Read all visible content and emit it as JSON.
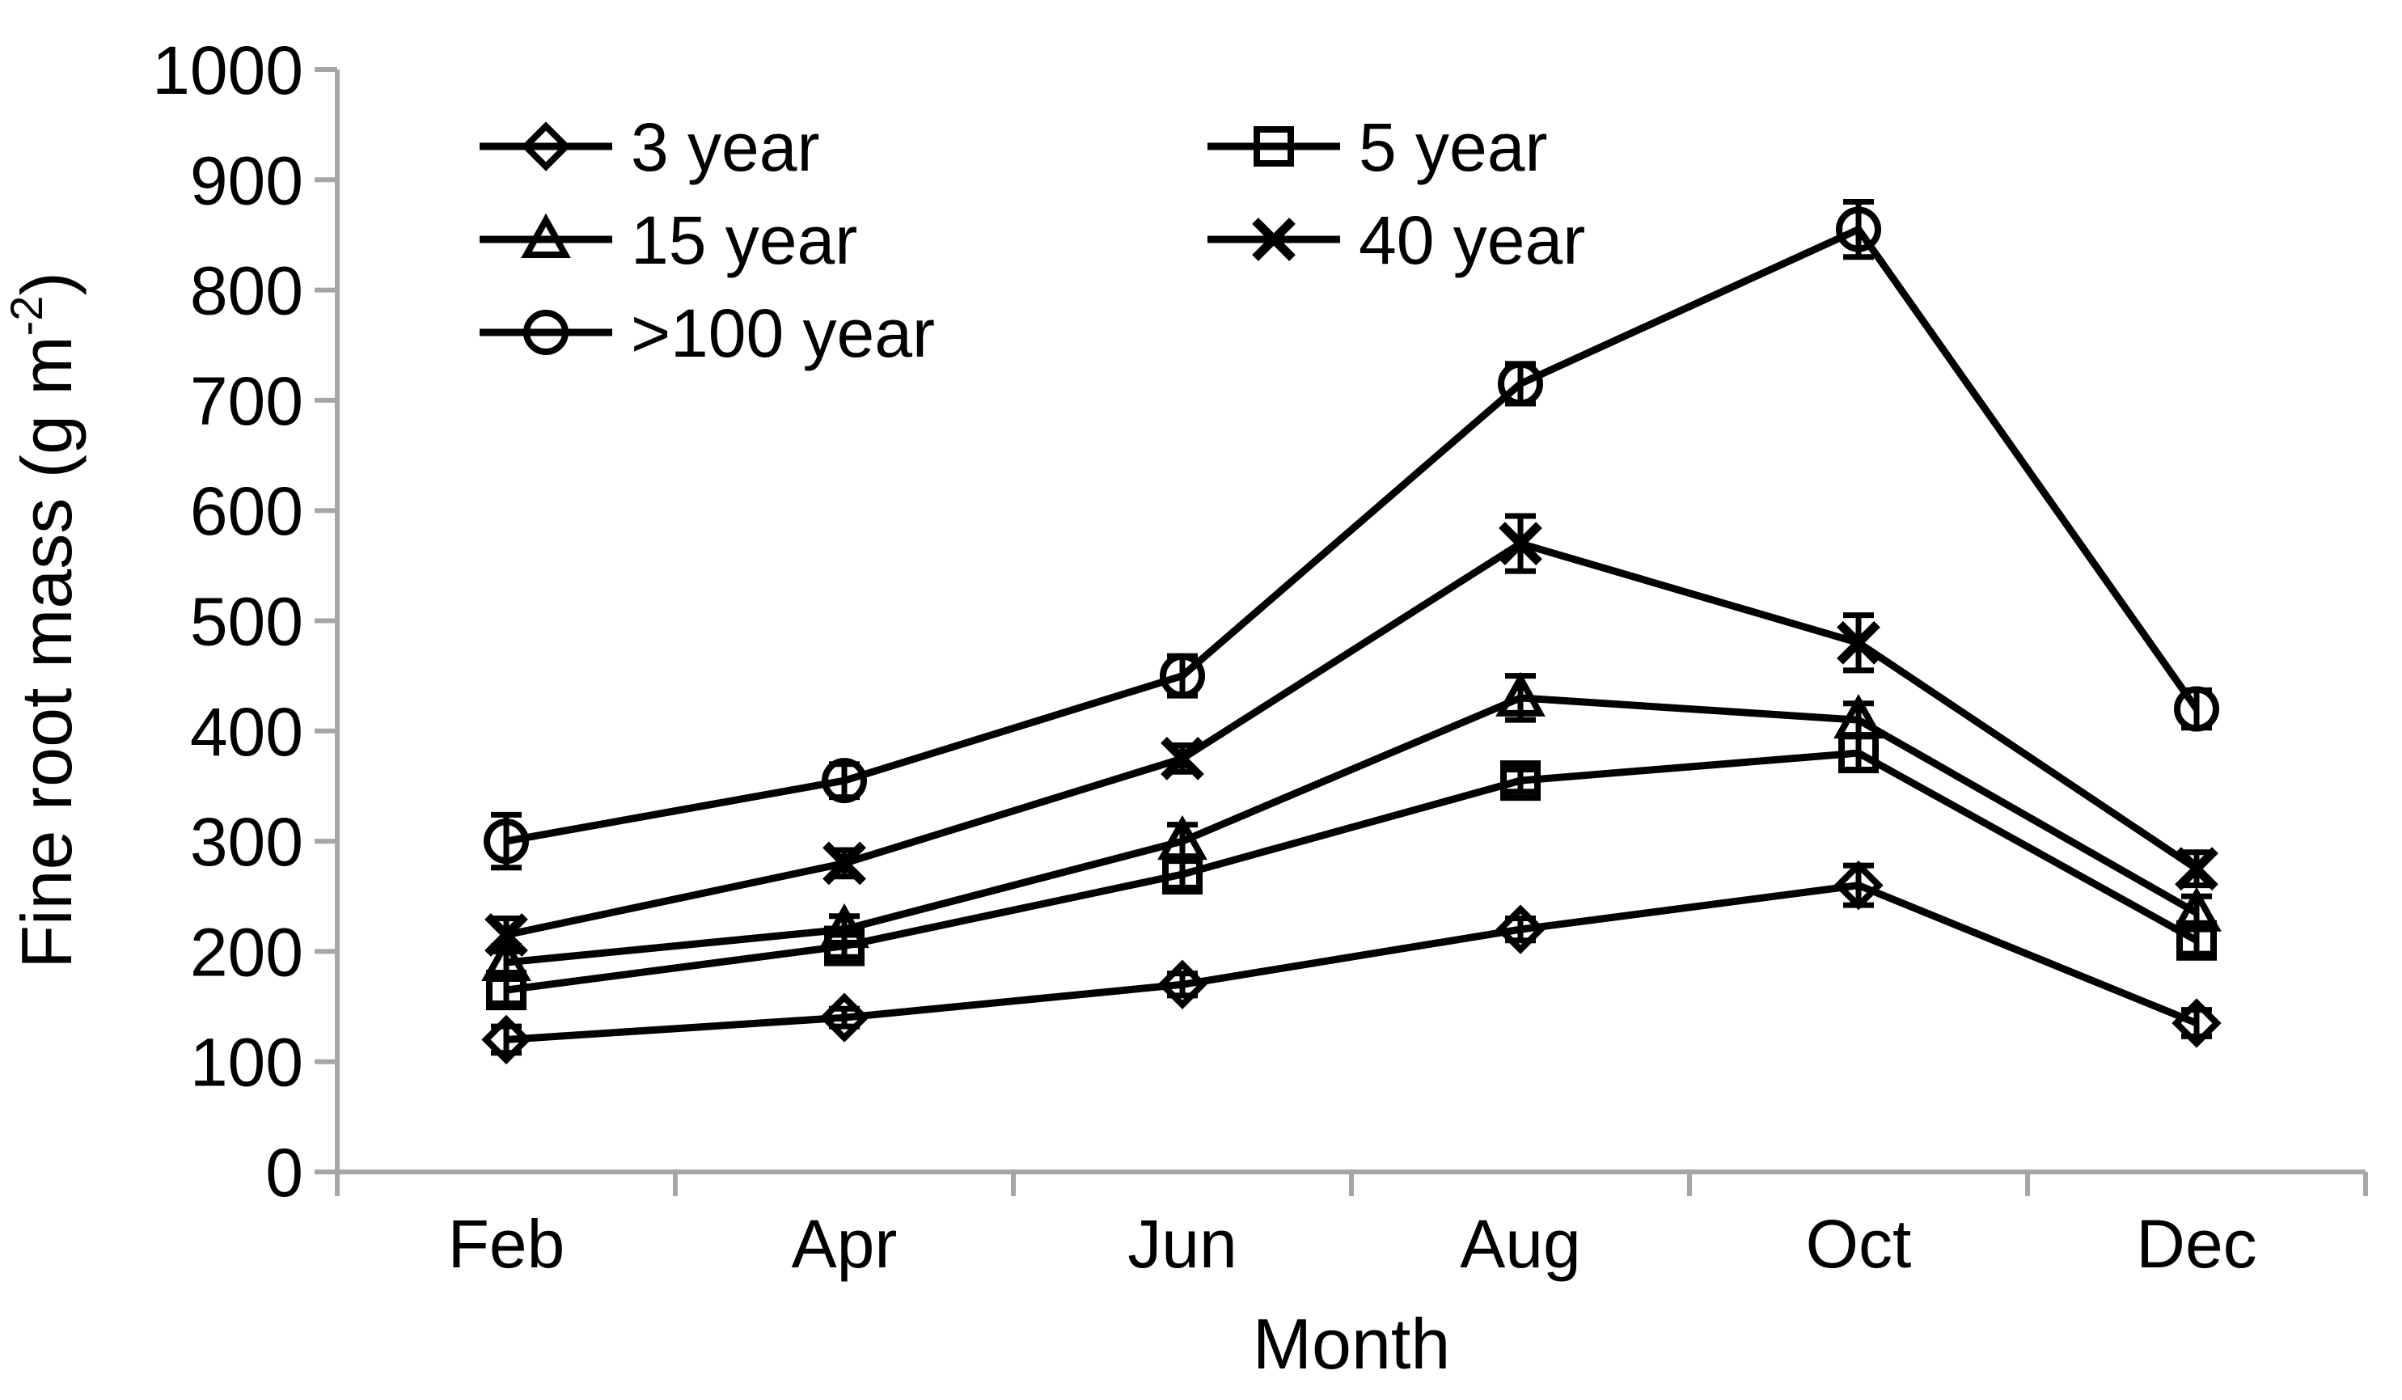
{
  "chart_data": {
    "type": "line",
    "title": "",
    "xlabel": "Month",
    "ylabel": "Fine root mass (g m⁻²)",
    "ylabel_parts": {
      "main": "Fine root mass (g m",
      "superscript": "-2",
      "suffix": ")"
    },
    "categories": [
      "Feb",
      "Apr",
      "Jun",
      "Aug",
      "Oct",
      "Dec"
    ],
    "ylim": [
      0,
      1000
    ],
    "y_ticks": [
      0,
      100,
      200,
      300,
      400,
      500,
      600,
      700,
      800,
      900,
      1000
    ],
    "grid": false,
    "legend_position": "top-left-inside",
    "legend_columns": 2,
    "axis_color": "#a6a6a6",
    "data_color": "#000000",
    "series": [
      {
        "name": "3 year",
        "marker": "diamond",
        "values": [
          120,
          140,
          170,
          220,
          260,
          135
        ],
        "errors": [
          12,
          8,
          10,
          10,
          18,
          12
        ]
      },
      {
        "name": "5 year",
        "marker": "square",
        "values": [
          165,
          205,
          270,
          355,
          380,
          210
        ],
        "errors": [
          12,
          10,
          12,
          10,
          15,
          12
        ]
      },
      {
        "name": "15 year",
        "marker": "triangle",
        "values": [
          190,
          220,
          300,
          430,
          410,
          235
        ],
        "errors": [
          15,
          12,
          15,
          20,
          15,
          15
        ]
      },
      {
        "name": "40 year",
        "marker": "x",
        "values": [
          215,
          280,
          375,
          570,
          480,
          275
        ],
        "errors": [
          15,
          12,
          12,
          25,
          25,
          15
        ]
      },
      {
        "name": ">100 year",
        "marker": "circle",
        "values": [
          300,
          355,
          450,
          715,
          855,
          420
        ],
        "errors": [
          24,
          15,
          18,
          18,
          25,
          17
        ]
      }
    ]
  }
}
